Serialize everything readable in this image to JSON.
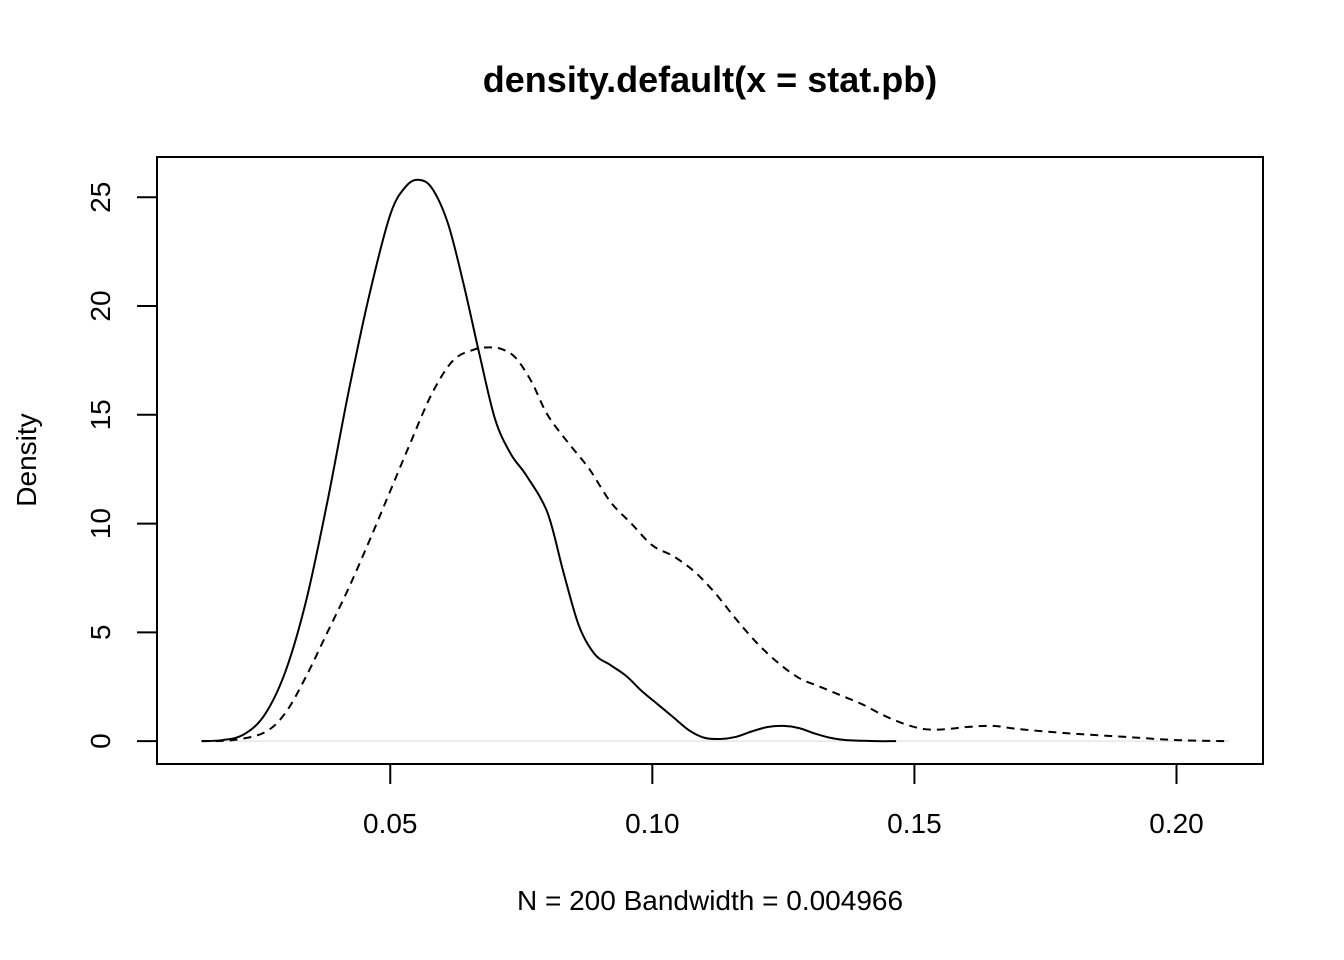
{
  "chart_data": {
    "type": "line",
    "title": "density.default(x = stat.pb)",
    "xlabel": "N = 200   Bandwidth = 0.004966",
    "ylabel": "Density",
    "xlim": [
      0.0055,
      0.2165
    ],
    "ylim": [
      -1.05,
      26.85
    ],
    "xticks": [
      0.05,
      0.1,
      0.15,
      0.2
    ],
    "xtick_labels": [
      "0.05",
      "0.10",
      "0.15",
      "0.20"
    ],
    "yticks": [
      0,
      5,
      10,
      15,
      20,
      25
    ],
    "ytick_labels": [
      "0",
      "5",
      "10",
      "15",
      "20",
      "25"
    ],
    "grid": false,
    "series": [
      {
        "line_style": "solid",
        "color": "#000000",
        "x": [
          0.014,
          0.018,
          0.022,
          0.026,
          0.03,
          0.034,
          0.038,
          0.042,
          0.046,
          0.05,
          0.053,
          0.0555,
          0.058,
          0.061,
          0.064,
          0.067,
          0.07,
          0.073,
          0.076,
          0.08,
          0.083,
          0.086,
          0.089,
          0.092,
          0.095,
          0.098,
          0.101,
          0.104,
          0.107,
          0.11,
          0.113,
          0.116,
          0.119,
          0.122,
          0.125,
          0.128,
          0.131,
          0.134,
          0.137,
          0.14,
          0.143,
          0.1465
        ],
        "y": [
          0.0,
          0.05,
          0.3,
          1.2,
          3.2,
          6.5,
          11.0,
          16.0,
          20.5,
          24.2,
          25.5,
          25.8,
          25.4,
          23.8,
          21.0,
          17.8,
          14.8,
          13.2,
          12.2,
          10.5,
          7.8,
          5.3,
          4.0,
          3.5,
          3.0,
          2.3,
          1.7,
          1.1,
          0.5,
          0.15,
          0.1,
          0.2,
          0.45,
          0.65,
          0.7,
          0.6,
          0.35,
          0.15,
          0.05,
          0.02,
          0.0,
          0.0
        ]
      },
      {
        "line_style": "dashed",
        "color": "#000000",
        "x": [
          0.014,
          0.02,
          0.026,
          0.03,
          0.034,
          0.038,
          0.042,
          0.046,
          0.05,
          0.054,
          0.058,
          0.062,
          0.066,
          0.069,
          0.0715,
          0.074,
          0.077,
          0.08,
          0.084,
          0.088,
          0.092,
          0.096,
          0.1,
          0.104,
          0.108,
          0.112,
          0.116,
          0.12,
          0.124,
          0.128,
          0.132,
          0.136,
          0.14,
          0.144,
          0.148,
          0.152,
          0.156,
          0.16,
          0.165,
          0.17,
          0.18,
          0.19,
          0.2,
          0.21
        ],
        "y": [
          0.0,
          0.05,
          0.4,
          1.3,
          3.0,
          5.0,
          7.0,
          9.2,
          11.5,
          13.8,
          16.0,
          17.5,
          18.0,
          18.1,
          18.0,
          17.6,
          16.5,
          15.0,
          13.7,
          12.5,
          11.0,
          10.0,
          9.0,
          8.5,
          7.8,
          6.8,
          5.6,
          4.5,
          3.6,
          2.9,
          2.5,
          2.1,
          1.7,
          1.2,
          0.8,
          0.55,
          0.55,
          0.65,
          0.7,
          0.55,
          0.35,
          0.2,
          0.05,
          0.0
        ]
      }
    ]
  }
}
